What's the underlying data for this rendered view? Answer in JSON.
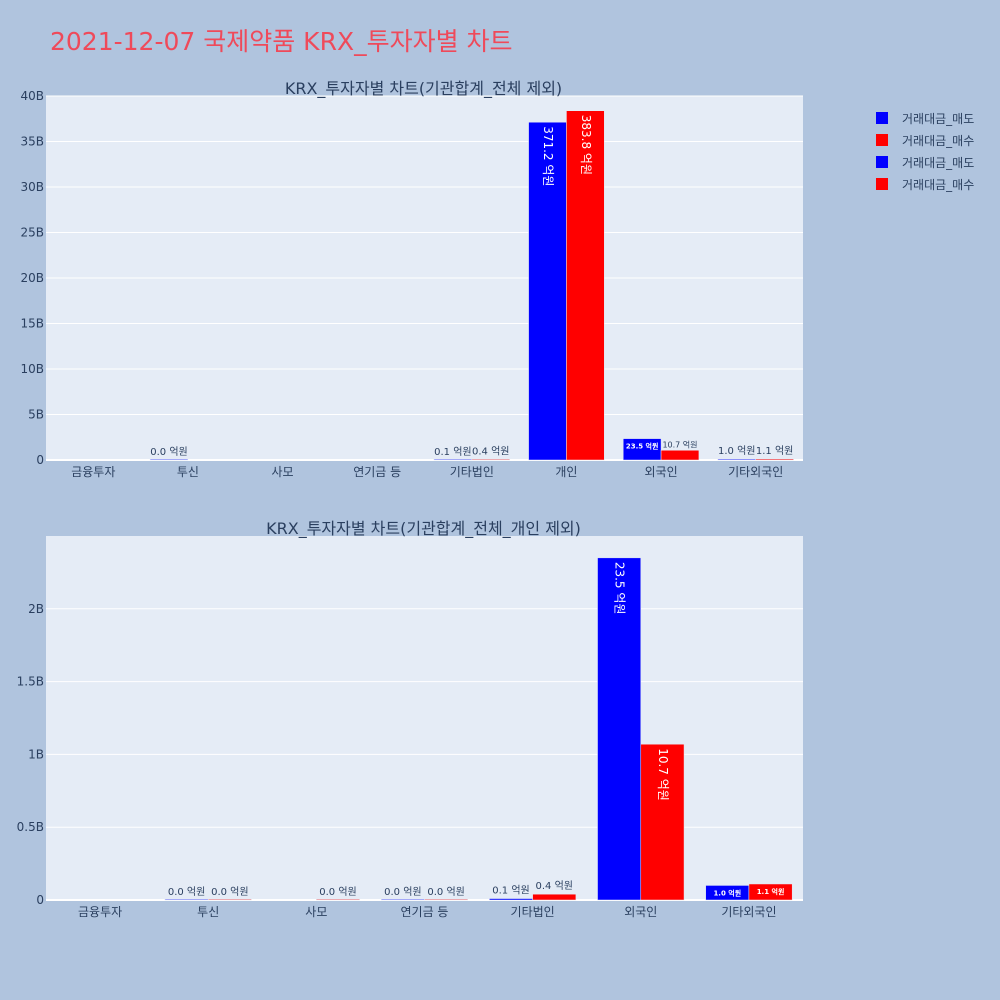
{
  "title": "2021-12-07 국제약품 KRX_투자자별 차트",
  "legend": [
    {
      "label": "거래대금_매도",
      "color": "#0000ff"
    },
    {
      "label": "거래대금_매수",
      "color": "#ff0000"
    },
    {
      "label": "거래대금_매도",
      "color": "#0000ff"
    },
    {
      "label": "거래대금_매수",
      "color": "#ff0000"
    }
  ],
  "chart_data": [
    {
      "type": "bar",
      "title": "KRX_투자자별 차트(기관합계_전체 제외)",
      "categories": [
        "금융투자",
        "투신",
        "사모",
        "연기금 등",
        "기타법인",
        "개인",
        "외국인",
        "기타외국인"
      ],
      "ylim": [
        0,
        40000000000
      ],
      "yticks": [
        0,
        5000000000,
        10000000000,
        15000000000,
        20000000000,
        25000000000,
        30000000000,
        35000000000,
        40000000000
      ],
      "ytick_labels": [
        "0",
        "5B",
        "10B",
        "15B",
        "20B",
        "25B",
        "30B",
        "35B",
        "40B"
      ],
      "grid": true,
      "series": [
        {
          "name": "거래대금_매도",
          "color": "#0000ff",
          "values": [
            null,
            0,
            null,
            null,
            10000000,
            37120000000,
            2350000000,
            100000000
          ],
          "labels": [
            "",
            "0.0 억원",
            "",
            "",
            "0.1 억원",
            "371.2 억원",
            "23.5 억원",
            "1.0 억원"
          ]
        },
        {
          "name": "거래대금_매수",
          "color": "#ff0000",
          "values": [
            null,
            null,
            null,
            null,
            40000000,
            38380000000,
            1070000000,
            110000000
          ],
          "labels": [
            "",
            "",
            "",
            "",
            "0.4 억원",
            "383.8 억원",
            "10.7 억원",
            "1.1 억원"
          ]
        }
      ]
    },
    {
      "type": "bar",
      "title": "KRX_투자자별 차트(기관합계_전체_개인 제외)",
      "categories": [
        "금융투자",
        "투신",
        "사모",
        "연기금 등",
        "기타법인",
        "외국인",
        "기타외국인"
      ],
      "ylim": [
        0,
        2500000000
      ],
      "yticks": [
        0,
        500000000,
        1000000000,
        1500000000,
        2000000000
      ],
      "ytick_labels": [
        "0",
        "0.5B",
        "1B",
        "1.5B",
        "2B"
      ],
      "grid": true,
      "series": [
        {
          "name": "거래대금_매도",
          "color": "#0000ff",
          "values": [
            null,
            0,
            null,
            0,
            10000000,
            2350000000,
            100000000
          ],
          "labels": [
            "",
            "0.0 억원",
            "",
            "0.0 억원",
            "0.1 억원",
            "23.5 억원",
            "1.0 억원"
          ]
        },
        {
          "name": "거래대금_매수",
          "color": "#ff0000",
          "values": [
            null,
            0,
            0,
            0,
            40000000,
            1070000000,
            110000000
          ],
          "labels": [
            "",
            "0.0 억원",
            "0.0 억원",
            "0.0 억원",
            "0.4 억원",
            "10.7 억원",
            "1.1 억원"
          ]
        }
      ]
    }
  ]
}
